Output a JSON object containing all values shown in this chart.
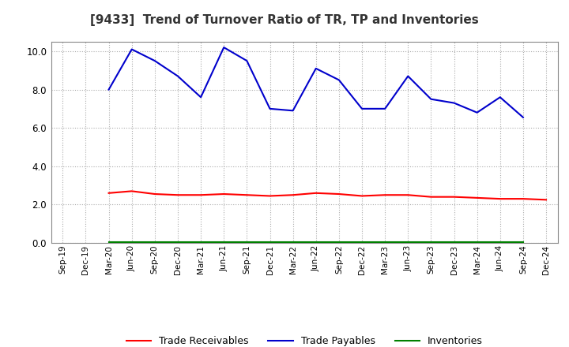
{
  "title": "[9433]  Trend of Turnover Ratio of TR, TP and Inventories",
  "x_labels": [
    "Sep-19",
    "Dec-19",
    "Mar-20",
    "Jun-20",
    "Sep-20",
    "Dec-20",
    "Mar-21",
    "Jun-21",
    "Sep-21",
    "Dec-21",
    "Mar-22",
    "Jun-22",
    "Sep-22",
    "Dec-22",
    "Mar-23",
    "Jun-23",
    "Sep-23",
    "Dec-23",
    "Mar-24",
    "Jun-24",
    "Sep-24",
    "Dec-24"
  ],
  "trade_receivables": [
    null,
    null,
    2.6,
    2.7,
    2.55,
    2.5,
    2.5,
    2.55,
    2.5,
    2.45,
    2.5,
    2.6,
    2.55,
    2.45,
    2.5,
    2.5,
    2.4,
    2.4,
    2.35,
    2.3,
    2.3,
    2.25
  ],
  "trade_payables": [
    null,
    null,
    8.0,
    10.1,
    9.5,
    8.7,
    7.6,
    10.2,
    9.5,
    7.0,
    6.9,
    9.1,
    8.5,
    7.0,
    7.0,
    8.7,
    7.5,
    7.3,
    6.8,
    7.6,
    6.55,
    null
  ],
  "inventories": [
    null,
    null,
    null,
    null,
    null,
    null,
    null,
    null,
    null,
    null,
    null,
    null,
    null,
    null,
    null,
    null,
    null,
    null,
    null,
    null,
    null,
    null
  ],
  "tr_color": "#ff0000",
  "tp_color": "#0000cc",
  "inv_color": "#008000",
  "ylim": [
    0.0,
    10.5
  ],
  "yticks": [
    0.0,
    2.0,
    4.0,
    6.0,
    8.0,
    10.0
  ],
  "bg_color": "#ffffff",
  "grid_color": "#aaaaaa"
}
